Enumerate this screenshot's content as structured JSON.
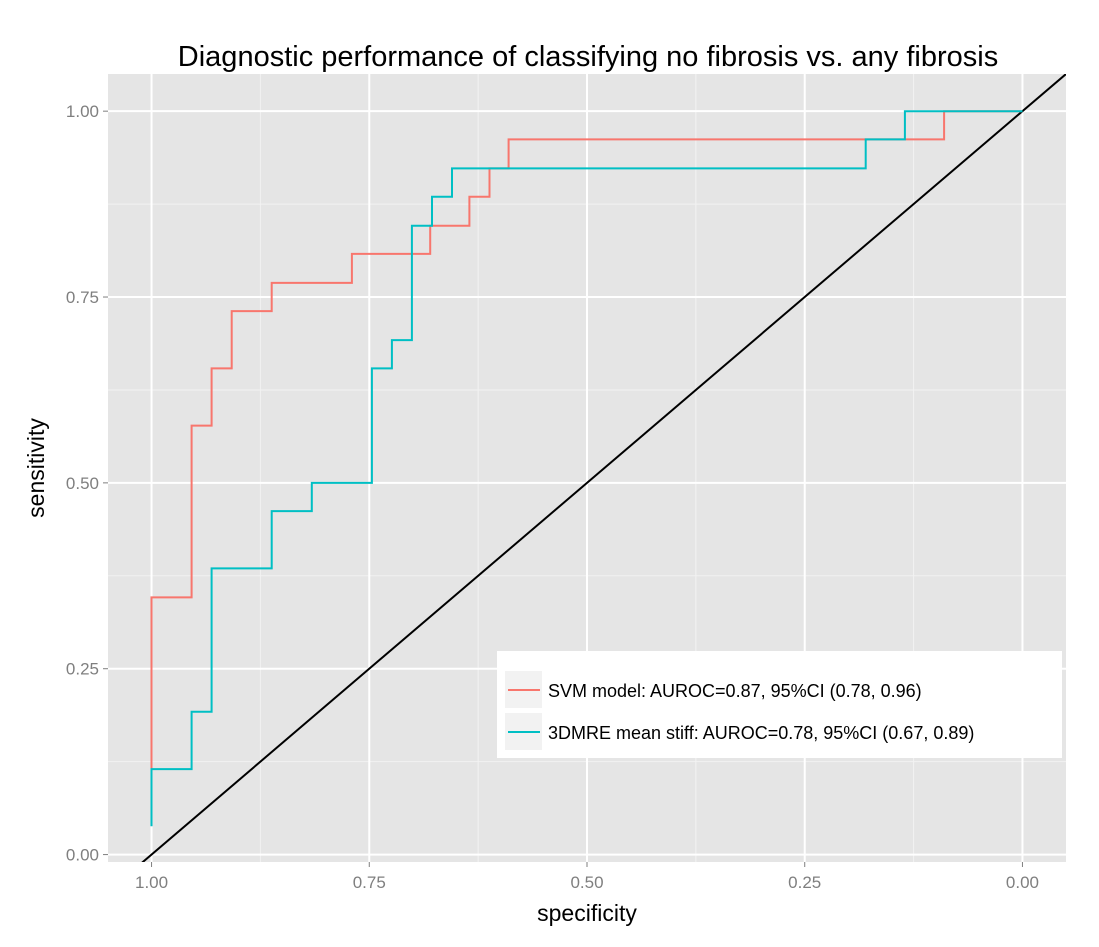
{
  "chart_data": {
    "type": "line",
    "title": "Diagnostic performance of classifying no fibrosis vs. any fibrosis",
    "xlabel": "specificity",
    "ylabel": "sensitivity",
    "x_reversed": true,
    "xlim": [
      1.05,
      -0.05
    ],
    "ylim": [
      -0.01,
      1.05
    ],
    "x_ticks": [
      1.0,
      0.75,
      0.5,
      0.25,
      0.0
    ],
    "x_tick_labels": [
      "1.00",
      "0.75",
      "0.50",
      "0.25",
      "0.00"
    ],
    "y_ticks": [
      0.0,
      0.25,
      0.5,
      0.75,
      1.0
    ],
    "y_tick_labels": [
      "0.00",
      "0.25",
      "0.50",
      "0.75",
      "1.00"
    ],
    "grid": true,
    "background": "#e5e5e5",
    "grid_color": "#ffffff",
    "legend_position": "bottom-right",
    "reference_line": {
      "name": "chance",
      "color": "#000000",
      "points": [
        [
          1.0,
          0.0
        ],
        [
          0.0,
          1.0
        ]
      ]
    },
    "series": [
      {
        "name": "SVM model: AUROC=0.87, 95%CI (0.78, 0.96)",
        "color": "#f8766d",
        "step": true,
        "points": [
          [
            1.0,
            0.115
          ],
          [
            1.0,
            0.346
          ],
          [
            0.954,
            0.346
          ],
          [
            0.954,
            0.577
          ],
          [
            0.931,
            0.577
          ],
          [
            0.931,
            0.654
          ],
          [
            0.908,
            0.654
          ],
          [
            0.908,
            0.731
          ],
          [
            0.862,
            0.731
          ],
          [
            0.862,
            0.769
          ],
          [
            0.77,
            0.769
          ],
          [
            0.77,
            0.808
          ],
          [
            0.68,
            0.808
          ],
          [
            0.68,
            0.846
          ],
          [
            0.635,
            0.846
          ],
          [
            0.635,
            0.885
          ],
          [
            0.612,
            0.885
          ],
          [
            0.612,
            0.923
          ],
          [
            0.59,
            0.923
          ],
          [
            0.59,
            0.962
          ],
          [
            0.09,
            0.962
          ],
          [
            0.09,
            1.0
          ],
          [
            0.0,
            1.0
          ]
        ]
      },
      {
        "name": "3DMRE mean stiff: AUROC=0.78, 95%CI (0.67, 0.89)",
        "color": "#00bfc4",
        "step": true,
        "points": [
          [
            1.0,
            0.038
          ],
          [
            1.0,
            0.115
          ],
          [
            0.954,
            0.115
          ],
          [
            0.954,
            0.192
          ],
          [
            0.931,
            0.192
          ],
          [
            0.931,
            0.385
          ],
          [
            0.862,
            0.385
          ],
          [
            0.862,
            0.462
          ],
          [
            0.816,
            0.462
          ],
          [
            0.816,
            0.5
          ],
          [
            0.747,
            0.5
          ],
          [
            0.747,
            0.654
          ],
          [
            0.724,
            0.654
          ],
          [
            0.724,
            0.692
          ],
          [
            0.701,
            0.692
          ],
          [
            0.701,
            0.846
          ],
          [
            0.678,
            0.846
          ],
          [
            0.678,
            0.885
          ],
          [
            0.655,
            0.885
          ],
          [
            0.655,
            0.923
          ],
          [
            0.18,
            0.923
          ],
          [
            0.18,
            0.962
          ],
          [
            0.135,
            0.962
          ],
          [
            0.135,
            1.0
          ],
          [
            0.0,
            1.0
          ]
        ]
      }
    ]
  }
}
